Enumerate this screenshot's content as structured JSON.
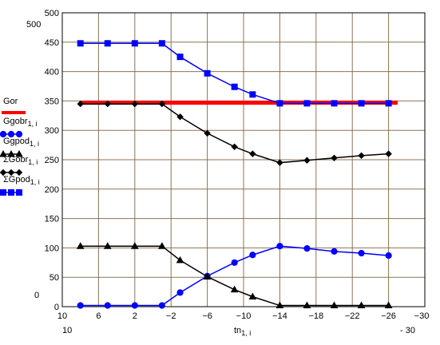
{
  "chart_data": {
    "type": "line",
    "xlabel": "tn",
    "xlabel_sub": "1, i",
    "xlim": [
      10,
      -30
    ],
    "ylim": [
      0,
      500
    ],
    "x_ticks": [
      10,
      6,
      2,
      -2,
      -6,
      -10,
      -14,
      -18,
      -22,
      -26,
      -30
    ],
    "y_ticks": [
      0,
      50,
      100,
      150,
      200,
      250,
      300,
      350,
      400,
      450,
      500
    ],
    "corner_labels": {
      "y_top": "500",
      "y_bottom": "0",
      "x_left": "10",
      "x_right": "- 30"
    },
    "grid": true,
    "legend_position": "left",
    "series": [
      {
        "name": "Gor",
        "sub": "",
        "color": "#ff0000",
        "marker": "none",
        "x": [
          8,
          -27
        ],
        "y": [
          347,
          347
        ]
      },
      {
        "name": "Ggobr",
        "sub": "1, i",
        "color": "#0000ff",
        "marker": "circle",
        "x": [
          8,
          5,
          2,
          -1,
          -3,
          -6,
          -9,
          -11,
          -14,
          -17,
          -20,
          -23,
          -26
        ],
        "y": [
          2,
          2,
          2,
          2,
          24,
          52,
          75,
          88,
          103,
          99,
          94,
          91,
          87
        ]
      },
      {
        "name": "Ggpod",
        "sub": "1, i",
        "color": "#000000",
        "marker": "triangle",
        "x": [
          8,
          5,
          2,
          -1,
          -3,
          -6,
          -9,
          -11,
          -14,
          -17,
          -20,
          -23,
          -26
        ],
        "y": [
          103,
          103,
          103,
          103,
          79,
          51,
          29,
          17,
          2,
          2,
          2,
          2,
          2
        ]
      },
      {
        "name": "ΣGobr",
        "sub": "1, i",
        "color": "#000000",
        "marker": "diamond",
        "x": [
          8,
          5,
          2,
          -1,
          -3,
          -6,
          -9,
          -11,
          -14,
          -17,
          -20,
          -23,
          -26
        ],
        "y": [
          345,
          345,
          345,
          345,
          323,
          295,
          272,
          260,
          245,
          249,
          253,
          257,
          260
        ]
      },
      {
        "name": "ΣGpod",
        "sub": "1, i",
        "color": "#0000ff",
        "marker": "square",
        "x": [
          8,
          5,
          2,
          -1,
          -3,
          -6,
          -9,
          -11,
          -14,
          -17,
          -20,
          -23,
          -26
        ],
        "y": [
          448,
          448,
          448,
          448,
          425,
          397,
          374,
          361,
          346,
          346,
          346,
          346,
          346
        ]
      }
    ]
  }
}
